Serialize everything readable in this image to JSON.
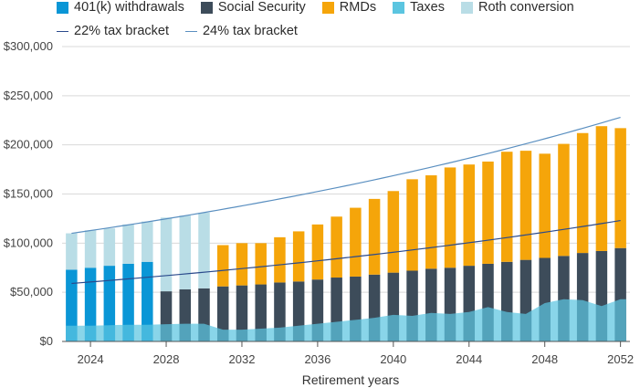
{
  "chart_data": {
    "type": "bar",
    "title": "",
    "xlabel": "Retirement years",
    "ylabel": "",
    "ylim": [
      0,
      300000
    ],
    "yticks": [
      "$0",
      "$50,000",
      "$100,000",
      "$150,000",
      "$200,000",
      "$250,000",
      "$300,000"
    ],
    "ytick_values": [
      0,
      50000,
      100000,
      150000,
      200000,
      250000,
      300000
    ],
    "xticks": [
      "2024",
      "2028",
      "2032",
      "2036",
      "2040",
      "2044",
      "2048",
      "2052"
    ],
    "xtick_values": [
      2024,
      2028,
      2032,
      2036,
      2040,
      2044,
      2048,
      2052
    ],
    "years": [
      2023,
      2024,
      2025,
      2026,
      2027,
      2028,
      2029,
      2030,
      2031,
      2032,
      2033,
      2034,
      2035,
      2036,
      2037,
      2038,
      2039,
      2040,
      2041,
      2042,
      2043,
      2044,
      2045,
      2046,
      2047,
      2048,
      2049,
      2050,
      2051,
      2052
    ],
    "legend": {
      "row1": [
        {
          "label": "401(k) withdrawals",
          "color": "#0a96d6"
        },
        {
          "label": "Social Security",
          "color": "#3d4c5a"
        },
        {
          "label": "RMDs",
          "color": "#f5a50a"
        },
        {
          "label": "Taxes",
          "color": "#5bc5e0"
        },
        {
          "label": "Roth conversion",
          "color": "#b9dde6"
        }
      ],
      "row2": [
        {
          "label": "22% tax bracket",
          "color": "#2a4a8c"
        },
        {
          "label": "24% tax bracket",
          "color": "#5a8fc0"
        }
      ]
    },
    "series": [
      {
        "name": "401(k) withdrawals",
        "color": "#0a96d6",
        "values": [
          73000,
          75000,
          77000,
          79000,
          81000,
          0,
          0,
          0,
          0,
          0,
          0,
          0,
          0,
          0,
          0,
          0,
          0,
          0,
          0,
          0,
          0,
          0,
          0,
          0,
          0,
          0,
          0,
          0,
          0,
          0
        ]
      },
      {
        "name": "Social Security",
        "color": "#3d4c5a",
        "values": [
          0,
          0,
          0,
          0,
          0,
          51000,
          53000,
          54000,
          56000,
          57000,
          58000,
          60000,
          61000,
          63000,
          65000,
          66000,
          68000,
          70000,
          72000,
          74000,
          75000,
          77000,
          79000,
          81000,
          83000,
          85000,
          87000,
          90000,
          92000,
          95000
        ]
      },
      {
        "name": "RMDs",
        "color": "#f5a50a",
        "values": [
          0,
          0,
          0,
          0,
          0,
          0,
          0,
          0,
          42000,
          43000,
          42000,
          46000,
          51000,
          56000,
          62000,
          70000,
          77000,
          83000,
          93000,
          95000,
          102000,
          103000,
          104000,
          112000,
          111000,
          106000,
          114000,
          122000,
          127000,
          122000
        ]
      },
      {
        "name": "Roth conversion",
        "color": "#b9dde6",
        "values": [
          37000,
          38000,
          38000,
          40000,
          41000,
          75000,
          75000,
          77000,
          0,
          0,
          0,
          0,
          0,
          0,
          0,
          0,
          0,
          0,
          0,
          0,
          0,
          0,
          0,
          0,
          0,
          0,
          0,
          0,
          0,
          0
        ]
      },
      {
        "name": "Taxes",
        "color": "#5bc5e0",
        "values": [
          16000,
          16000,
          16500,
          17000,
          17000,
          17500,
          18000,
          18000,
          12000,
          12000,
          13000,
          14000,
          16000,
          18000,
          20000,
          22000,
          24000,
          27000,
          26000,
          29000,
          28000,
          30000,
          35000,
          30000,
          28000,
          39000,
          43000,
          42000,
          36000,
          43000
        ]
      },
      {
        "name": "22% tax bracket",
        "color": "#2a4a8c",
        "values": [
          59000,
          123000
        ]
      },
      {
        "name": "24% tax bracket",
        "color": "#5a8fc0",
        "values": [
          110000,
          228000
        ]
      }
    ]
  }
}
